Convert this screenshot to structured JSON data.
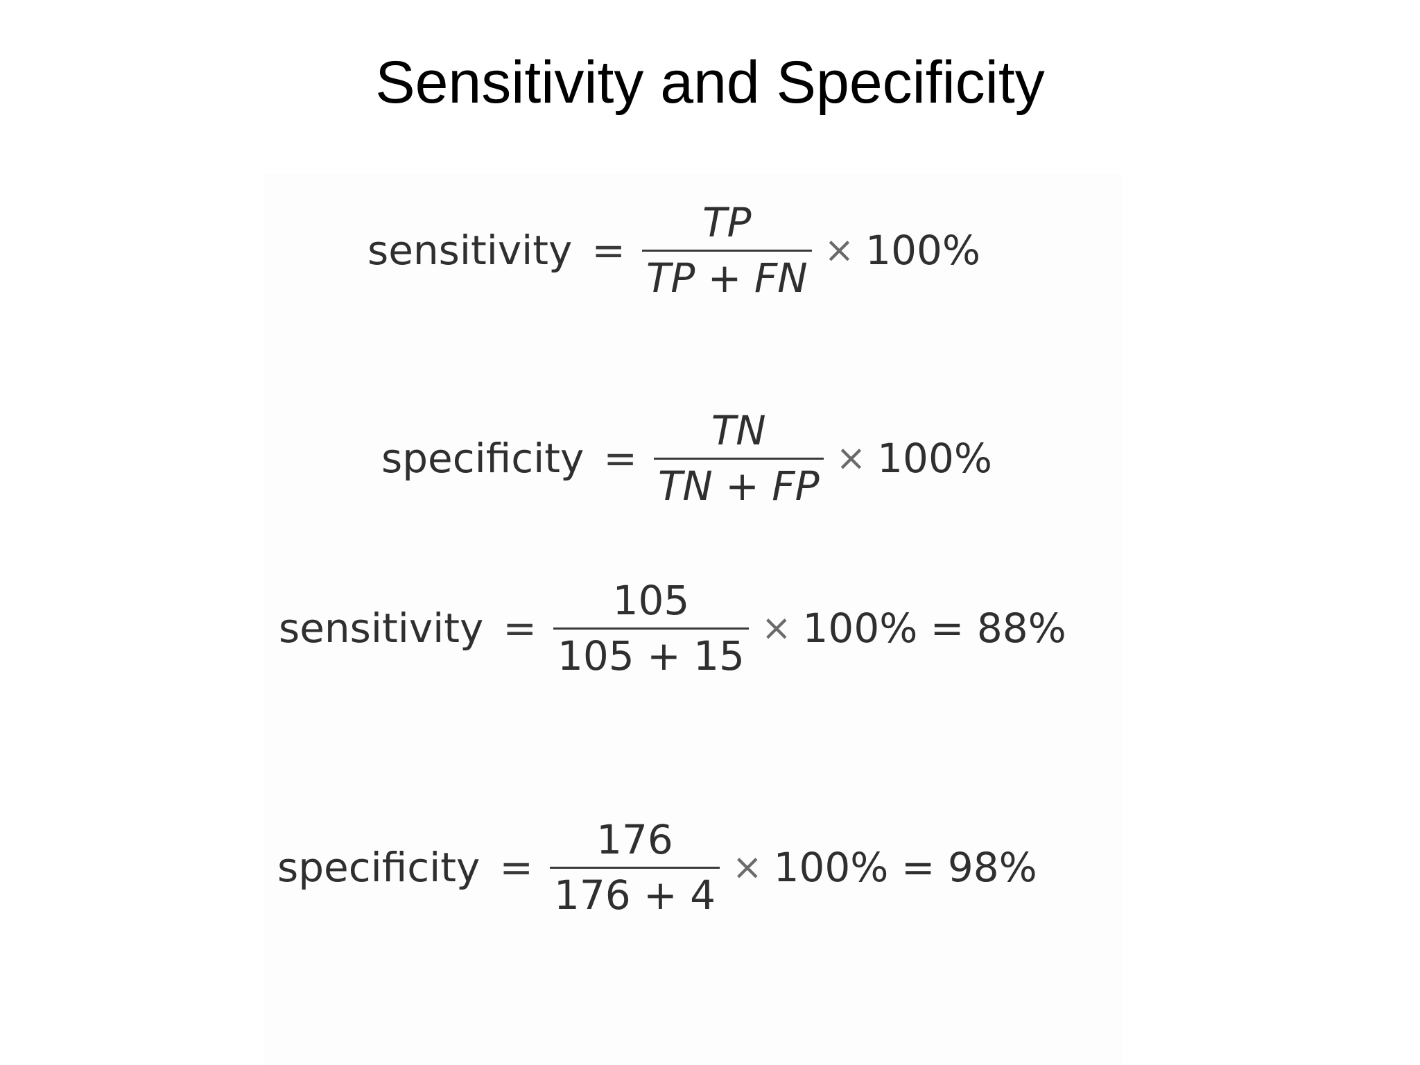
{
  "slide": {
    "title": "Sensitivity and Specificity"
  },
  "formulas": [
    {
      "lhs": "sensitivity",
      "equals": "=",
      "numerator": "TP",
      "denominator": "TP + FN",
      "times": "×",
      "factor": "100%"
    },
    {
      "lhs": "specificity",
      "equals": "=",
      "numerator": "TN",
      "denominator": "TN + FP",
      "times": "×",
      "factor": "100%"
    },
    {
      "lhs": "sensitivity",
      "equals": "=",
      "numerator": "105",
      "denominator": "105 + 15",
      "times": "×",
      "factor": "100% = 88%"
    },
    {
      "lhs": "specificity",
      "equals": "=",
      "numerator": "176",
      "denominator": "176 + 4",
      "times": "×",
      "factor": "100% = 98%"
    }
  ]
}
